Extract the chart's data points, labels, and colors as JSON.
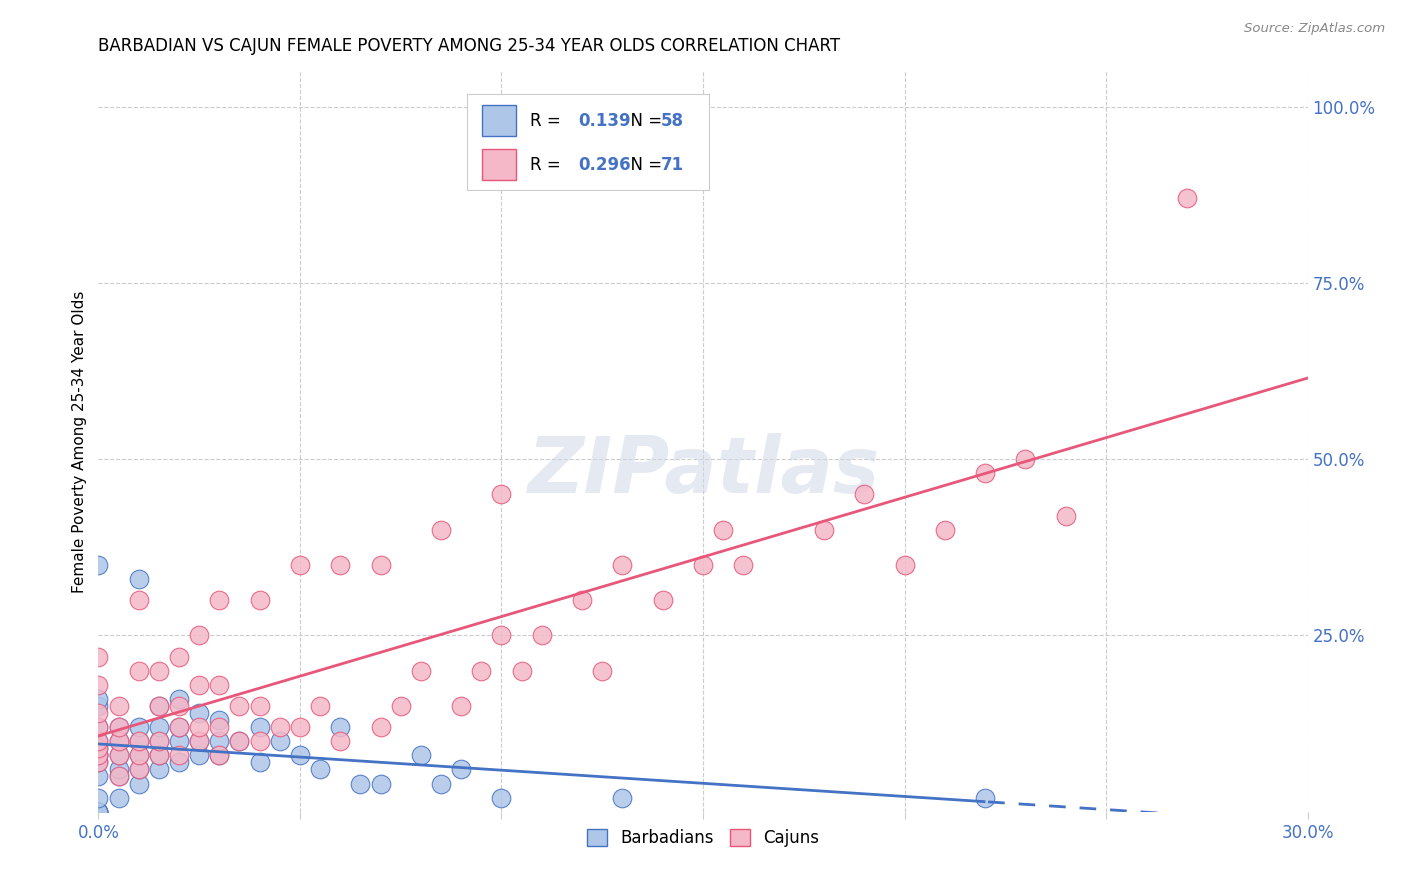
{
  "title": "BARBADIAN VS CAJUN FEMALE POVERTY AMONG 25-34 YEAR OLDS CORRELATION CHART",
  "source": "Source: ZipAtlas.com",
  "ylabel": "Female Poverty Among 25-34 Year Olds",
  "xlim": [
    0.0,
    0.3
  ],
  "ylim": [
    0.0,
    1.05
  ],
  "xticks": [
    0.0,
    0.05,
    0.1,
    0.15,
    0.2,
    0.25,
    0.3
  ],
  "xticklabels": [
    "0.0%",
    "",
    "",
    "",
    "",
    "",
    "30.0%"
  ],
  "yticks_right": [
    0.0,
    0.25,
    0.5,
    0.75,
    1.0
  ],
  "yticklabels_right": [
    "",
    "25.0%",
    "50.0%",
    "75.0%",
    "100.0%"
  ],
  "R_barbadian": 0.139,
  "N_barbadian": 58,
  "R_cajun": 0.296,
  "N_cajun": 71,
  "color_barbadian_fill": "#aec6e8",
  "color_barbadian_edge": "#4472c4",
  "color_cajun_fill": "#f4b8c8",
  "color_cajun_edge": "#e8567a",
  "color_blue": "#4472c4",
  "color_pink": "#e8567a",
  "legend_label_barbadian": "Barbadians",
  "legend_label_cajun": "Cajuns",
  "barbadian_x": [
    0.0,
    0.0,
    0.0,
    0.0,
    0.0,
    0.0,
    0.0,
    0.0,
    0.0,
    0.0,
    0.0,
    0.0,
    0.0,
    0.0,
    0.0,
    0.0,
    0.005,
    0.005,
    0.005,
    0.005,
    0.005,
    0.005,
    0.01,
    0.01,
    0.01,
    0.01,
    0.01,
    0.01,
    0.015,
    0.015,
    0.015,
    0.015,
    0.015,
    0.02,
    0.02,
    0.02,
    0.02,
    0.025,
    0.025,
    0.025,
    0.03,
    0.03,
    0.03,
    0.035,
    0.04,
    0.04,
    0.045,
    0.05,
    0.055,
    0.06,
    0.065,
    0.07,
    0.08,
    0.085,
    0.09,
    0.1,
    0.13,
    0.22
  ],
  "barbadian_y": [
    0.0,
    0.0,
    0.0,
    0.0,
    0.0,
    0.02,
    0.05,
    0.07,
    0.08,
    0.08,
    0.09,
    0.1,
    0.12,
    0.15,
    0.16,
    0.35,
    0.02,
    0.05,
    0.06,
    0.08,
    0.1,
    0.12,
    0.04,
    0.06,
    0.08,
    0.1,
    0.12,
    0.33,
    0.06,
    0.08,
    0.1,
    0.12,
    0.15,
    0.07,
    0.1,
    0.12,
    0.16,
    0.08,
    0.1,
    0.14,
    0.08,
    0.1,
    0.13,
    0.1,
    0.07,
    0.12,
    0.1,
    0.08,
    0.06,
    0.12,
    0.04,
    0.04,
    0.08,
    0.04,
    0.06,
    0.02,
    0.02,
    0.02
  ],
  "cajun_x": [
    0.0,
    0.0,
    0.0,
    0.0,
    0.0,
    0.0,
    0.0,
    0.0,
    0.005,
    0.005,
    0.005,
    0.005,
    0.005,
    0.01,
    0.01,
    0.01,
    0.01,
    0.01,
    0.015,
    0.015,
    0.015,
    0.015,
    0.02,
    0.02,
    0.02,
    0.02,
    0.025,
    0.025,
    0.025,
    0.025,
    0.03,
    0.03,
    0.03,
    0.03,
    0.035,
    0.035,
    0.04,
    0.04,
    0.04,
    0.045,
    0.05,
    0.05,
    0.055,
    0.06,
    0.06,
    0.07,
    0.07,
    0.075,
    0.08,
    0.085,
    0.09,
    0.095,
    0.1,
    0.1,
    0.105,
    0.11,
    0.12,
    0.125,
    0.13,
    0.14,
    0.15,
    0.155,
    0.16,
    0.18,
    0.19,
    0.2,
    0.21,
    0.22,
    0.23,
    0.24,
    0.27
  ],
  "cajun_y": [
    0.07,
    0.08,
    0.09,
    0.1,
    0.12,
    0.14,
    0.18,
    0.22,
    0.05,
    0.08,
    0.1,
    0.12,
    0.15,
    0.06,
    0.08,
    0.1,
    0.2,
    0.3,
    0.08,
    0.1,
    0.15,
    0.2,
    0.08,
    0.12,
    0.15,
    0.22,
    0.1,
    0.12,
    0.18,
    0.25,
    0.08,
    0.12,
    0.18,
    0.3,
    0.1,
    0.15,
    0.1,
    0.15,
    0.3,
    0.12,
    0.12,
    0.35,
    0.15,
    0.1,
    0.35,
    0.12,
    0.35,
    0.15,
    0.2,
    0.4,
    0.15,
    0.2,
    0.25,
    0.45,
    0.2,
    0.25,
    0.3,
    0.2,
    0.35,
    0.3,
    0.35,
    0.4,
    0.35,
    0.4,
    0.45,
    0.35,
    0.4,
    0.48,
    0.5,
    0.42,
    0.87
  ]
}
